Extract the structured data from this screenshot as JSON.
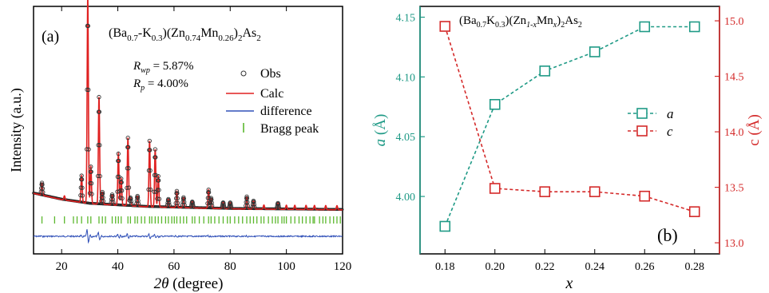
{
  "chart_data": [
    {
      "type": "line",
      "panel_label": "(a)",
      "title_parts": {
        "t1": "(Ba",
        "s1": "0.7",
        "t2": "-K",
        "s2": "0.3",
        "t3": ")(Zn",
        "s3": "0.74",
        "t4": "Mn",
        "s4": "0.26",
        "t5": ")",
        "s5": "2",
        "t6": "As",
        "s6": "2"
      },
      "xlabel_parts": {
        "sym": "2θ",
        "rest": " (degree)"
      },
      "ylabel": "Intensity (a.u.)",
      "xlim": [
        10,
        120
      ],
      "xticks": [
        20,
        40,
        60,
        80,
        100,
        120
      ],
      "rwp": {
        "base": "R",
        "sub": "wp",
        "value": " = 5.87%"
      },
      "rp": {
        "base": "R",
        "sub": "p",
        "value": " = 4.00%"
      },
      "legend": [
        {
          "key": "obs",
          "label": "Obs",
          "color": "#333333"
        },
        {
          "key": "calc",
          "label": "Calc",
          "color": "#e02020"
        },
        {
          "key": "diff",
          "label": "difference",
          "color": "#3050b8"
        },
        {
          "key": "bragg",
          "label": "Bragg peak",
          "color": "#5cb82e"
        }
      ],
      "background_profile": [
        [
          10,
          0.1
        ],
        [
          20,
          0.07
        ],
        [
          30,
          0.05
        ],
        [
          50,
          0.035
        ],
        [
          80,
          0.025
        ],
        [
          120,
          0.02
        ]
      ],
      "peaks": [
        [
          13.0,
          0.06
        ],
        [
          21.0,
          0.02
        ],
        [
          27.1,
          0.13
        ],
        [
          29.3,
          1.0
        ],
        [
          30.4,
          0.18
        ],
        [
          33.3,
          0.52
        ],
        [
          34.5,
          0.06
        ],
        [
          38.0,
          0.05
        ],
        [
          40.2,
          0.25
        ],
        [
          41.2,
          0.13
        ],
        [
          43.6,
          0.33
        ],
        [
          44.5,
          0.04
        ],
        [
          47.0,
          0.05
        ],
        [
          51.3,
          0.32
        ],
        [
          53.3,
          0.28
        ],
        [
          54.4,
          0.15
        ],
        [
          58.0,
          0.04
        ],
        [
          61.0,
          0.08
        ],
        [
          63.4,
          0.05
        ],
        [
          66.5,
          0.03
        ],
        [
          72.3,
          0.09
        ],
        [
          73.2,
          0.05
        ],
        [
          77.5,
          0.03
        ],
        [
          80.0,
          0.03
        ],
        [
          85.9,
          0.06
        ],
        [
          88.3,
          0.04
        ],
        [
          92.0,
          0.02
        ],
        [
          97.0,
          0.03
        ],
        [
          100.0,
          0.02
        ],
        [
          103.0,
          0.02
        ],
        [
          107.0,
          0.02
        ],
        [
          110.0,
          0.02
        ],
        [
          114.0,
          0.02
        ],
        [
          118.0,
          0.02
        ]
      ],
      "bragg_positions": [
        13.0,
        17.5,
        21.0,
        24.2,
        25.5,
        27.1,
        29.3,
        30.4,
        33.3,
        34.5,
        35.6,
        38.0,
        39.2,
        40.2,
        41.2,
        43.6,
        44.5,
        46.1,
        47.0,
        48.4,
        49.6,
        51.3,
        52.1,
        53.3,
        54.4,
        55.6,
        57.0,
        58.0,
        59.2,
        60.1,
        61.0,
        62.2,
        63.4,
        64.5,
        66.5,
        67.4,
        69.0,
        70.6,
        72.3,
        73.2,
        74.5,
        76.0,
        77.5,
        79.0,
        80.0,
        81.6,
        83.0,
        84.4,
        85.9,
        87.1,
        88.3,
        89.5,
        91.0,
        92.0,
        93.6,
        95.0,
        96.1,
        97.0,
        98.4,
        99.2,
        100.0,
        101.6,
        103.0,
        104.5,
        105.7,
        107.0,
        108.4,
        109.5,
        110.0,
        111.8,
        113.0,
        114.0,
        115.5,
        116.8,
        118.0,
        119.2
      ]
    },
    {
      "type": "line",
      "panel_label": "(b)",
      "title_parts": {
        "t1": "(Ba",
        "s1": "0.7",
        "t2": "K",
        "s2": "0.3",
        "t3": ")(Zn",
        "s3": "1-x",
        "t4": "Mn",
        "s4": "x",
        "t5": ")",
        "s5": "2",
        "t6": "As",
        "s6": "2"
      },
      "xlabel": "x",
      "ylabel_left": {
        "sym": "a",
        "rest": " (Å)"
      },
      "ylabel_right": "c (Å)",
      "x": [
        0.18,
        0.2,
        0.22,
        0.24,
        0.26,
        0.28
      ],
      "xticks": [
        "0.18",
        "0.20",
        "0.22",
        "0.24",
        "0.26",
        "0.28"
      ],
      "xlim": [
        0.17,
        0.29
      ],
      "ylim_left": [
        3.98,
        4.155
      ],
      "yticks_left": [
        "4.00",
        "4.05",
        "4.10",
        "4.15"
      ],
      "ylim_right": [
        12.9,
        15.13
      ],
      "yticks_right": [
        "13.0",
        "13.5",
        "14.0",
        "14.5",
        "15.0"
      ],
      "series": [
        {
          "name": "a",
          "axis": "left",
          "color": "#1f9a86",
          "values": [
            3.975,
            4.077,
            4.105,
            4.121,
            4.142,
            4.142
          ]
        },
        {
          "name": "c",
          "axis": "right",
          "color": "#d42a2a",
          "values": [
            14.95,
            13.49,
            13.46,
            13.46,
            13.42,
            13.28
          ]
        }
      ]
    }
  ]
}
